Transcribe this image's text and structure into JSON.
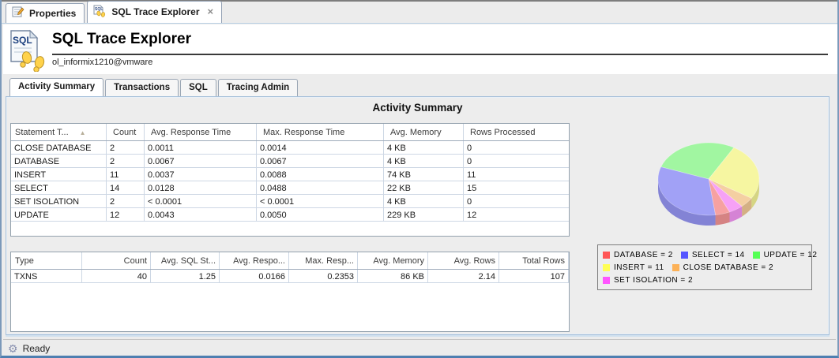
{
  "icons": {
    "close": "×",
    "sort_asc": "▲",
    "gear": "⚙"
  },
  "window": {
    "tabs": [
      {
        "label": "Properties",
        "icon": "properties-icon"
      },
      {
        "label": "SQL Trace Explorer",
        "icon": "sql-trace-icon",
        "closable": true
      }
    ]
  },
  "header": {
    "title": "SQL Trace Explorer",
    "connection": "ol_informix1210@vmware"
  },
  "subtabs": {
    "items": [
      "Activity Summary",
      "Transactions",
      "SQL",
      "Tracing Admin"
    ],
    "active": "Activity Summary"
  },
  "main": {
    "section_title": "Activity Summary",
    "statement_table": {
      "columns": [
        "Statement T...",
        "Count",
        "Avg. Response Time",
        "Max. Response Time",
        "Avg. Memory",
        "Rows Processed"
      ],
      "sort_column": 0,
      "rows": [
        [
          "CLOSE DATABASE",
          "2",
          "0.0011",
          "0.0014",
          "4 KB",
          "0"
        ],
        [
          "DATABASE",
          "2",
          "0.0067",
          "0.0067",
          "4 KB",
          "0"
        ],
        [
          "INSERT",
          "11",
          "0.0037",
          "0.0088",
          "74 KB",
          "11"
        ],
        [
          "SELECT",
          "14",
          "0.0128",
          "0.0488",
          "22 KB",
          "15"
        ],
        [
          "SET ISOLATION",
          "2",
          "< 0.0001",
          "< 0.0001",
          "4 KB",
          "0"
        ],
        [
          "UPDATE",
          "12",
          "0.0043",
          "0.0050",
          "229 KB",
          "12"
        ]
      ]
    },
    "txn_table": {
      "columns": [
        "Type",
        "Count",
        "Avg. SQL St...",
        "Avg. Respo...",
        "Max. Resp...",
        "Avg. Memory",
        "Avg. Rows",
        "Total Rows"
      ],
      "rows": [
        [
          "TXNS",
          "40",
          "1.25",
          "0.0166",
          "0.2353",
          "86 KB",
          "2.14",
          "107"
        ]
      ]
    }
  },
  "chart_data": {
    "type": "pie",
    "title": "",
    "slices": [
      {
        "label": "DATABASE",
        "value": 2,
        "color": "#ff5555"
      },
      {
        "label": "SELECT",
        "value": 14,
        "color": "#5555ff"
      },
      {
        "label": "UPDATE",
        "value": 12,
        "color": "#55ff55"
      },
      {
        "label": "INSERT",
        "value": 11,
        "color": "#ffff55"
      },
      {
        "label": "CLOSE DATABASE",
        "value": 2,
        "color": "#fcb157"
      },
      {
        "label": "SET ISOLATION",
        "value": 2,
        "color": "#ff55ff"
      }
    ],
    "total": 43,
    "layout": {
      "style": "3d",
      "direction": "clockwise",
      "start_angle_deg": 199.5,
      "draw_order": [
        2,
        3,
        4,
        5,
        0,
        1
      ],
      "legend_rows": [
        [
          0,
          1,
          2
        ],
        [
          3,
          4
        ],
        [
          5
        ]
      ],
      "legend_position": "bottom-right"
    }
  },
  "statusbar": {
    "text": "Ready"
  }
}
